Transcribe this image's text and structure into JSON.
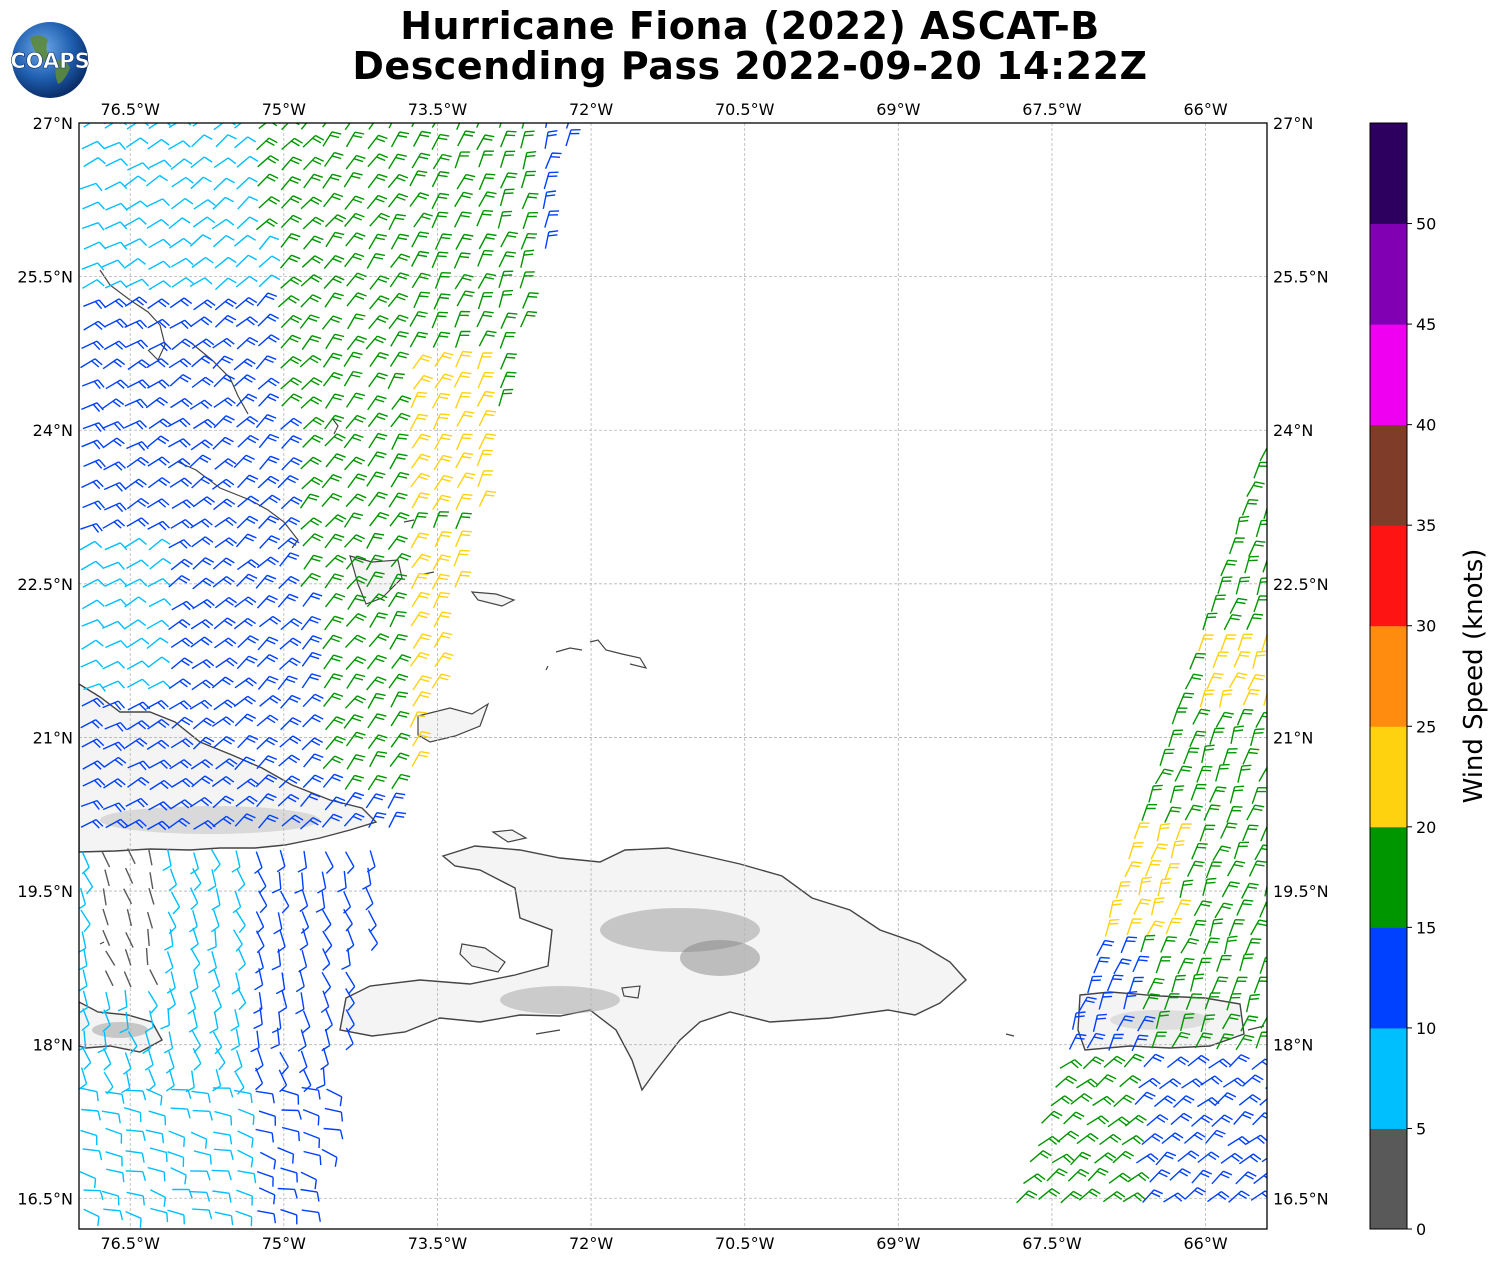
{
  "title": {
    "line1": "Hurricane Fiona (2022) ASCAT-B",
    "line2": "Descending Pass 2022-09-20 14:22Z"
  },
  "logo": {
    "text": "COAPS",
    "icon": "globe-icon"
  },
  "longitude_ticks": [
    "76.5°W",
    "75°W",
    "73.5°W",
    "72°W",
    "70.5°W",
    "69°W",
    "67.5°W",
    "66°W"
  ],
  "latitude_ticks": [
    "27°N",
    "25.5°N",
    "24°N",
    "22.5°N",
    "21°N",
    "19.5°N",
    "18°N",
    "16.5°N"
  ],
  "colorbar": {
    "label": "Wind Speed (knots)",
    "ticks": [
      "0",
      "5",
      "10",
      "15",
      "20",
      "25",
      "30",
      "35",
      "40",
      "45",
      "50"
    ],
    "colors": [
      "#595959",
      "#00bfff",
      "#0040ff",
      "#009600",
      "#ffd20f",
      "#ff8c0f",
      "#ff1414",
      "#7f3c28",
      "#f000f0",
      "#8200b4",
      "#2d005f"
    ]
  },
  "map": {
    "lon_range": [
      -77.0,
      -65.4
    ],
    "lat_range": [
      16.2,
      27.0
    ],
    "land_color": "#f4f4f4",
    "coast_color": "#444444",
    "grid": true
  }
}
